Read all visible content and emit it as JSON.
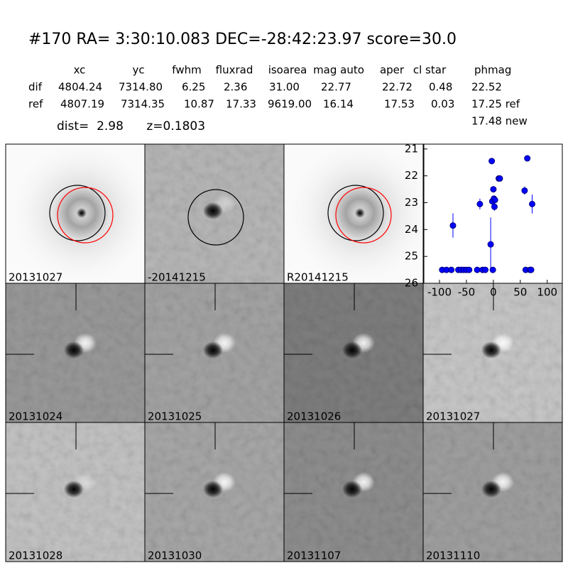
{
  "header": {
    "title": "#170   RA= 3:30:10.083 DEC=-28:42:23.97       score=30.0"
  },
  "table": {
    "columns": [
      "xc",
      "yc",
      "fwhm",
      "fluxrad",
      "isoarea",
      "mag auto",
      "aper",
      "cl star",
      "phmag"
    ],
    "rows": [
      [
        "dif",
        "4804.24",
        "7314.80",
        "6.25",
        "2.36",
        "31.00",
        "22.77",
        "22.72",
        "0.48",
        "22.52"
      ],
      [
        "ref",
        "4807.19",
        "7314.35",
        "10.87",
        "17.33",
        "9619.00",
        "16.14",
        "17.53",
        "0.03",
        "17.25 ref"
      ]
    ],
    "extra": "17.48 new",
    "summary": "dist=  2.98      z=0.1803"
  },
  "panels": [
    {
      "label": "20131027",
      "color": "#000000"
    },
    {
      "label": "-20141215",
      "color": "#000000"
    },
    {
      "label": "R20141215",
      "color": "#000000"
    },
    {
      "label": "20131024",
      "color": "#000000"
    },
    {
      "label": "20131025",
      "color": "#000000"
    },
    {
      "label": "20131026",
      "color": "#000000"
    },
    {
      "label": "20131027",
      "color": "#ff0000"
    },
    {
      "label": "20131028",
      "color": "#000000"
    },
    {
      "label": "20131030",
      "color": "#000000"
    },
    {
      "label": "20131107",
      "color": "#000000"
    },
    {
      "label": "20131110",
      "color": "#000000"
    }
  ],
  "chart_data": {
    "type": "scatter",
    "xlim": [
      -129,
      128
    ],
    "ylim": [
      26,
      20.82
    ],
    "xticks": [
      -100,
      -50,
      0,
      50,
      100
    ],
    "yticks": [
      21,
      22,
      23,
      24,
      25,
      26
    ],
    "series": [
      {
        "color": "#0000ff",
        "x": [
          -95,
          -87,
          -78,
          -75,
          -65,
          -60,
          -55,
          -50,
          -45,
          -30,
          -25,
          -20,
          -15,
          -5,
          -3,
          -2,
          -1,
          0,
          1,
          2,
          3,
          10,
          12,
          58,
          60,
          63,
          68,
          70,
          72
        ],
        "values": [
          25.5,
          25.5,
          25.5,
          23.85,
          25.5,
          25.5,
          25.5,
          25.5,
          25.5,
          25.5,
          23.05,
          25.5,
          25.5,
          24.55,
          21.45,
          22.95,
          25.5,
          22.5,
          22.85,
          23.15,
          22.9,
          22.1,
          22.1,
          22.55,
          25.5,
          21.35,
          25.5,
          25.5,
          23.05
        ],
        "errors": [
          0,
          0,
          0,
          0.45,
          0,
          0,
          0,
          0,
          0,
          0,
          0.2,
          0,
          0,
          1.0,
          0,
          0,
          0,
          0,
          0.1,
          0.15,
          0,
          0.05,
          0.05,
          0.15,
          0,
          0,
          0,
          0,
          0.35
        ]
      }
    ]
  }
}
